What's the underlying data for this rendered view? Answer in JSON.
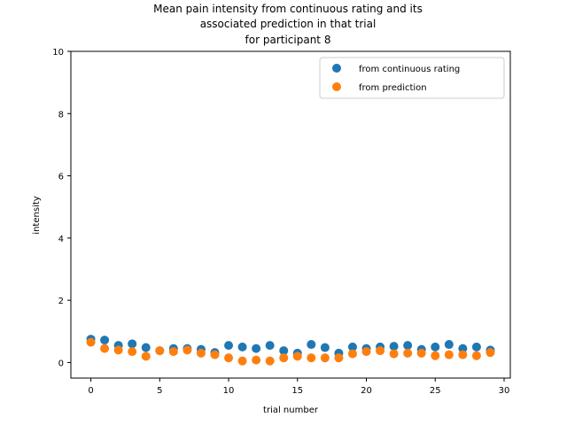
{
  "chart_data": {
    "type": "scatter",
    "title": [
      "Mean pain intensity from continuous rating and its",
      "associated prediction in that trial",
      "for participant 8"
    ],
    "xlabel": "trial number",
    "ylabel": "intensity",
    "xlim": [
      -1.45,
      30.45
    ],
    "ylim": [
      -0.5,
      10
    ],
    "xticks": [
      0,
      5,
      10,
      15,
      20,
      25,
      30
    ],
    "yticks": [
      0,
      2,
      4,
      6,
      8,
      10
    ],
    "grid": false,
    "legend_position": "top-right",
    "series": [
      {
        "name": "from continuous rating",
        "color": "#1f77b4",
        "x": [
          0,
          1,
          2,
          3,
          4,
          5,
          6,
          7,
          8,
          9,
          10,
          11,
          12,
          13,
          14,
          15,
          16,
          17,
          18,
          19,
          20,
          21,
          22,
          23,
          24,
          25,
          26,
          27,
          28,
          29
        ],
        "y": [
          0.75,
          0.72,
          0.55,
          0.6,
          0.48,
          0.38,
          0.45,
          0.45,
          0.42,
          0.32,
          0.55,
          0.5,
          0.45,
          0.55,
          0.38,
          0.3,
          0.58,
          0.48,
          0.3,
          0.5,
          0.45,
          0.5,
          0.52,
          0.55,
          0.42,
          0.5,
          0.58,
          0.45,
          0.5,
          0.4
        ]
      },
      {
        "name": "from prediction",
        "color": "#ff7f0e",
        "x": [
          0,
          1,
          2,
          3,
          4,
          5,
          6,
          7,
          8,
          9,
          10,
          11,
          12,
          13,
          14,
          15,
          16,
          17,
          18,
          19,
          20,
          21,
          22,
          23,
          24,
          25,
          26,
          27,
          28,
          29
        ],
        "y": [
          0.65,
          0.45,
          0.4,
          0.35,
          0.2,
          0.38,
          0.35,
          0.4,
          0.3,
          0.25,
          0.15,
          0.05,
          0.08,
          0.05,
          0.15,
          0.2,
          0.15,
          0.15,
          0.15,
          0.28,
          0.35,
          0.38,
          0.28,
          0.3,
          0.3,
          0.22,
          0.25,
          0.25,
          0.22,
          0.32
        ]
      }
    ]
  }
}
